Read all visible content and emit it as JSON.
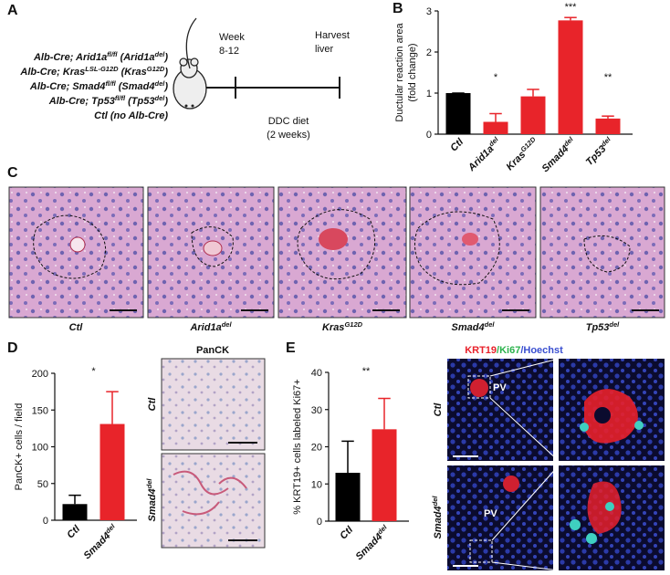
{
  "panel_a": {
    "letter": "A",
    "genotypes": [
      [
        "Alb-Cre; Arid1a",
        "fl/fl",
        " (Arid1a",
        "del",
        ")"
      ],
      [
        "Alb-Cre; Kras",
        "LSL-G12D",
        " (Kras",
        "G12D",
        ")"
      ],
      [
        "Alb-Cre; Smad4",
        "fl/fl",
        " (Smad4",
        "del",
        ")"
      ],
      [
        "Alb-Cre; Tp53",
        "fl/fl",
        " (Tp53",
        "del",
        ")"
      ],
      "Ctl (no Alb-Cre)"
    ],
    "week_label": "Week",
    "week_range": "8-12",
    "harvest_label": [
      "Harvest",
      "liver"
    ],
    "diet_label": [
      "DDC diet",
      "(2 weeks)"
    ]
  },
  "panel_b": {
    "letter": "B"
  },
  "panel_c": {
    "letter": "C",
    "labels": [
      "Ctl",
      [
        "Arid1a",
        "del"
      ],
      [
        "Kras",
        "G12D"
      ],
      [
        "Smad4",
        "del"
      ],
      [
        "Tp53",
        "del"
      ]
    ]
  },
  "panel_d": {
    "letter": "D",
    "image_title": "PanCK",
    "row_labels": [
      "Ctl",
      [
        "Smad4",
        "del"
      ]
    ]
  },
  "panel_e": {
    "letter": "E",
    "header": [
      "KRT19",
      "/Ki67",
      "/Hoechst"
    ],
    "header_colors": [
      "#e8202a",
      "#2bb24c",
      "#3a4fd0"
    ],
    "pv_labels": [
      "PV",
      "PV"
    ],
    "row_labels": [
      "Ctl",
      [
        "Smad4",
        "del"
      ]
    ]
  },
  "chart_data": [
    {
      "type": "bar",
      "ylabel": [
        "Ductular reaction area",
        "(fold change)"
      ],
      "categories": [
        "Ctl",
        [
          "Arid1a",
          "del"
        ],
        [
          "Kras",
          "G12D"
        ],
        [
          "Smad4",
          "del"
        ],
        [
          "Tp53",
          "del"
        ]
      ],
      "values": [
        1.0,
        0.3,
        0.92,
        2.77,
        0.38
      ],
      "errors": [
        0,
        0.2,
        0.17,
        0.07,
        0.06
      ],
      "colors": [
        "#000000",
        "#e8242a",
        "#e8242a",
        "#e8242a",
        "#e8242a"
      ],
      "annotations": [
        null,
        "*",
        null,
        "***",
        "**"
      ],
      "ylim": [
        0,
        3
      ],
      "yticks": [
        0,
        1,
        2,
        3
      ]
    },
    {
      "type": "bar",
      "ylabel": "PanCK+ cells / field",
      "categories": [
        "Ctl",
        [
          "Smad4",
          "del"
        ]
      ],
      "values": [
        22,
        131
      ],
      "errors": [
        12,
        44
      ],
      "colors": [
        "#000000",
        "#e8242a"
      ],
      "annotation": "*",
      "ylim": [
        0,
        200
      ],
      "yticks": [
        0,
        50,
        100,
        150,
        200
      ]
    },
    {
      "type": "bar",
      "ylabel": "% KRT19+ cells labeled Ki67+",
      "categories": [
        "Ctl",
        [
          "Smad4",
          "del"
        ]
      ],
      "values": [
        13,
        24.7
      ],
      "errors": [
        8.5,
        8.3
      ],
      "colors": [
        "#000000",
        "#e8242a"
      ],
      "annotation": "**",
      "ylim": [
        0,
        40
      ],
      "yticks": [
        0,
        10,
        20,
        30,
        40
      ]
    }
  ]
}
